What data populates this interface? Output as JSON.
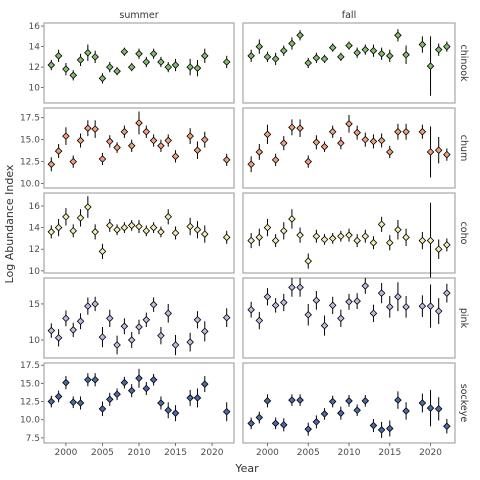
{
  "chart_data": {
    "type": "scatter",
    "xlabel": "Year",
    "ylabel": "Log Abundance Index",
    "x_ticks": [
      2000,
      2005,
      2010,
      2015,
      2020
    ],
    "x_range": [
      1997,
      2023
    ],
    "columns": [
      "summer",
      "fall"
    ],
    "rows": [
      {
        "name": "chinook",
        "color": "#7fbf6a",
        "ylim": [
          8.5,
          16.3
        ],
        "y_ticks": [
          10,
          12,
          14,
          16
        ],
        "tick_labels": [
          "10",
          "12",
          "14",
          "16"
        ],
        "summer": [
          [
            1998,
            12.2,
            0.5
          ],
          [
            1999,
            13.1,
            0.6
          ],
          [
            2000,
            11.8,
            0.6
          ],
          [
            2001,
            11.2,
            0.5
          ],
          [
            2002,
            12.7,
            0.6
          ],
          [
            2003,
            13.4,
            0.8
          ],
          [
            2004,
            13.0,
            0.6
          ],
          [
            2005,
            10.9,
            0.5
          ],
          [
            2006,
            12.0,
            0.5
          ],
          [
            2007,
            11.6,
            0.4
          ],
          [
            2008,
            13.5,
            0.4
          ],
          [
            2009,
            12.0,
            0.4
          ],
          [
            2010,
            13.3,
            0.5
          ],
          [
            2011,
            12.5,
            0.5
          ],
          [
            2012,
            13.3,
            0.5
          ],
          [
            2013,
            12.5,
            0.5
          ],
          [
            2014,
            12.0,
            0.5
          ],
          [
            2015,
            12.2,
            0.6
          ],
          [
            2017,
            12.0,
            0.8
          ],
          [
            2018,
            11.9,
            0.8
          ],
          [
            2019,
            13.1,
            0.7
          ],
          [
            2022,
            12.5,
            0.6
          ]
        ],
        "fall": [
          [
            1998,
            13.1,
            0.6
          ],
          [
            1999,
            14.0,
            0.7
          ],
          [
            2000,
            13.0,
            0.5
          ],
          [
            2001,
            12.8,
            0.6
          ],
          [
            2002,
            13.6,
            0.5
          ],
          [
            2003,
            14.3,
            0.6
          ],
          [
            2004,
            15.1,
            0.5
          ],
          [
            2005,
            12.4,
            0.5
          ],
          [
            2006,
            12.9,
            0.5
          ],
          [
            2007,
            12.8,
            0.4
          ],
          [
            2008,
            13.9,
            0.4
          ],
          [
            2009,
            13.0,
            0.4
          ],
          [
            2010,
            14.1,
            0.4
          ],
          [
            2011,
            13.4,
            0.5
          ],
          [
            2012,
            13.7,
            0.5
          ],
          [
            2013,
            13.6,
            0.6
          ],
          [
            2014,
            13.3,
            0.6
          ],
          [
            2015,
            13.1,
            0.6
          ],
          [
            2016,
            15.1,
            0.6
          ],
          [
            2017,
            13.2,
            0.9
          ],
          [
            2019,
            14.2,
            0.8
          ],
          [
            2020,
            12.1,
            2.9
          ],
          [
            2021,
            13.7,
            0.6
          ],
          [
            2022,
            14.0,
            0.5
          ]
        ]
      },
      {
        "name": "chum",
        "color": "#f4a07a",
        "ylim": [
          9.5,
          18.6
        ],
        "y_ticks": [
          10.0,
          12.5,
          15.0,
          17.5
        ],
        "tick_labels": [
          "10.0",
          "12.5",
          "15.0",
          "17.5"
        ],
        "summer": [
          [
            1998,
            12.2,
            0.8
          ],
          [
            1999,
            13.7,
            0.8
          ],
          [
            2000,
            15.4,
            1.0
          ],
          [
            2001,
            12.5,
            0.7
          ],
          [
            2002,
            14.9,
            0.8
          ],
          [
            2003,
            16.3,
            0.9
          ],
          [
            2004,
            16.2,
            1.0
          ],
          [
            2005,
            12.8,
            0.7
          ],
          [
            2006,
            14.8,
            0.7
          ],
          [
            2007,
            14.1,
            0.6
          ],
          [
            2008,
            15.9,
            0.7
          ],
          [
            2009,
            14.3,
            0.7
          ],
          [
            2010,
            16.9,
            1.3
          ],
          [
            2011,
            15.9,
            0.7
          ],
          [
            2012,
            14.9,
            0.7
          ],
          [
            2013,
            14.3,
            0.7
          ],
          [
            2014,
            14.9,
            0.7
          ],
          [
            2015,
            13.1,
            0.7
          ],
          [
            2017,
            15.4,
            0.9
          ],
          [
            2018,
            13.8,
            1.0
          ],
          [
            2019,
            15.0,
            0.9
          ],
          [
            2022,
            12.7,
            0.7
          ]
        ],
        "fall": [
          [
            1998,
            12.2,
            0.9
          ],
          [
            1999,
            13.6,
            0.9
          ],
          [
            2000,
            15.6,
            1.1
          ],
          [
            2001,
            12.7,
            0.7
          ],
          [
            2002,
            14.6,
            0.8
          ],
          [
            2003,
            16.4,
            0.9
          ],
          [
            2004,
            16.3,
            1.0
          ],
          [
            2005,
            12.5,
            0.7
          ],
          [
            2006,
            14.7,
            0.8
          ],
          [
            2007,
            14.2,
            0.6
          ],
          [
            2008,
            15.9,
            0.7
          ],
          [
            2009,
            14.6,
            0.7
          ],
          [
            2010,
            16.8,
            1.0
          ],
          [
            2011,
            15.8,
            0.8
          ],
          [
            2012,
            15.0,
            0.8
          ],
          [
            2013,
            14.8,
            0.8
          ],
          [
            2014,
            14.9,
            0.8
          ],
          [
            2015,
            13.6,
            0.7
          ],
          [
            2016,
            15.9,
            0.9
          ],
          [
            2017,
            15.9,
            0.9
          ],
          [
            2019,
            15.9,
            0.8
          ],
          [
            2020,
            13.6,
            2.9
          ],
          [
            2021,
            13.8,
            1.5
          ],
          [
            2022,
            13.3,
            0.7
          ]
        ]
      },
      {
        "name": "coho",
        "color": "#f4ecb0",
        "ylim": [
          9.8,
          17.2
        ],
        "y_ticks": [
          10,
          12,
          14,
          16
        ],
        "tick_labels": [
          "10",
          "12",
          "14",
          "16"
        ],
        "summer": [
          [
            1998,
            13.6,
            0.6
          ],
          [
            1999,
            14.0,
            0.8
          ],
          [
            2000,
            15.0,
            0.8
          ],
          [
            2001,
            13.7,
            0.6
          ],
          [
            2002,
            14.9,
            0.8
          ],
          [
            2003,
            15.9,
            1.0
          ],
          [
            2004,
            13.6,
            0.7
          ],
          [
            2005,
            11.8,
            0.7
          ],
          [
            2006,
            14.2,
            0.6
          ],
          [
            2007,
            13.8,
            0.5
          ],
          [
            2008,
            14.0,
            0.5
          ],
          [
            2009,
            14.2,
            0.5
          ],
          [
            2010,
            14.1,
            0.6
          ],
          [
            2011,
            13.7,
            0.5
          ],
          [
            2012,
            14.0,
            0.5
          ],
          [
            2013,
            13.6,
            0.5
          ],
          [
            2014,
            15.0,
            0.7
          ],
          [
            2015,
            13.5,
            0.6
          ],
          [
            2017,
            14.1,
            0.8
          ],
          [
            2018,
            13.8,
            0.8
          ],
          [
            2019,
            13.4,
            0.8
          ],
          [
            2022,
            13.1,
            0.6
          ]
        ],
        "fall": [
          [
            1998,
            12.8,
            0.7
          ],
          [
            1999,
            13.1,
            0.8
          ],
          [
            2000,
            14.0,
            0.8
          ],
          [
            2001,
            12.8,
            0.6
          ],
          [
            2002,
            13.7,
            0.8
          ],
          [
            2003,
            14.8,
            0.9
          ],
          [
            2004,
            13.3,
            0.7
          ],
          [
            2005,
            10.9,
            0.7
          ],
          [
            2006,
            13.2,
            0.6
          ],
          [
            2007,
            12.9,
            0.5
          ],
          [
            2008,
            13.0,
            0.5
          ],
          [
            2009,
            13.2,
            0.5
          ],
          [
            2010,
            13.3,
            0.6
          ],
          [
            2011,
            12.8,
            0.6
          ],
          [
            2012,
            13.2,
            0.6
          ],
          [
            2013,
            12.6,
            0.6
          ],
          [
            2014,
            14.3,
            0.7
          ],
          [
            2015,
            12.6,
            0.7
          ],
          [
            2016,
            13.8,
            0.9
          ],
          [
            2017,
            13.1,
            0.8
          ],
          [
            2019,
            12.8,
            0.8
          ],
          [
            2020,
            12.8,
            3.5
          ],
          [
            2021,
            12.0,
            0.9
          ],
          [
            2022,
            12.4,
            0.6
          ]
        ]
      },
      {
        "name": "pink",
        "color": "#c3b9e6",
        "ylim": [
          7.5,
          18.6
        ],
        "y_ticks": [
          10,
          15
        ],
        "tick_labels": [
          "10",
          "15"
        ],
        "summer": [
          [
            1998,
            11.3,
            1.0
          ],
          [
            1999,
            10.3,
            1.2
          ],
          [
            2000,
            13.0,
            1.1
          ],
          [
            2001,
            11.4,
            1.0
          ],
          [
            2002,
            12.6,
            1.1
          ],
          [
            2003,
            14.7,
            1.2
          ],
          [
            2004,
            15.0,
            1.0
          ],
          [
            2005,
            10.4,
            1.4
          ],
          [
            2006,
            13.0,
            1.2
          ],
          [
            2007,
            9.3,
            1.3
          ],
          [
            2008,
            11.9,
            1.1
          ],
          [
            2009,
            10.0,
            1.1
          ],
          [
            2010,
            11.8,
            1.0
          ],
          [
            2011,
            12.8,
            1.0
          ],
          [
            2012,
            14.9,
            1.0
          ],
          [
            2013,
            10.6,
            1.2
          ],
          [
            2014,
            13.7,
            1.3
          ],
          [
            2015,
            9.3,
            1.4
          ],
          [
            2017,
            9.7,
            1.3
          ],
          [
            2018,
            12.8,
            1.2
          ],
          [
            2019,
            11.2,
            1.4
          ],
          [
            2022,
            13.1,
            1.3
          ]
        ],
        "fall": [
          [
            1998,
            14.2,
            1.1
          ],
          [
            1999,
            12.7,
            1.2
          ],
          [
            2000,
            16.0,
            1.2
          ],
          [
            2001,
            14.8,
            1.0
          ],
          [
            2002,
            15.2,
            1.2
          ],
          [
            2003,
            17.3,
            1.3
          ],
          [
            2004,
            17.3,
            1.3
          ],
          [
            2005,
            13.5,
            1.5
          ],
          [
            2006,
            15.5,
            1.3
          ],
          [
            2007,
            12.0,
            1.4
          ],
          [
            2008,
            14.8,
            1.2
          ],
          [
            2009,
            13.0,
            1.2
          ],
          [
            2010,
            15.3,
            1.1
          ],
          [
            2011,
            15.4,
            1.1
          ],
          [
            2012,
            17.5,
            1.1
          ],
          [
            2013,
            13.7,
            1.2
          ],
          [
            2014,
            16.5,
            1.4
          ],
          [
            2015,
            14.6,
            1.5
          ],
          [
            2016,
            16.0,
            2.0
          ],
          [
            2017,
            14.6,
            1.5
          ],
          [
            2019,
            14.7,
            1.5
          ],
          [
            2020,
            14.7,
            3.0
          ],
          [
            2021,
            14.0,
            1.8
          ],
          [
            2022,
            16.5,
            1.3
          ]
        ]
      },
      {
        "name": "sockeye",
        "color": "#4a6aa8",
        "ylim": [
          6.8,
          17.8
        ],
        "y_ticks": [
          7.5,
          10.0,
          12.5,
          15.0,
          17.5
        ],
        "tick_labels": [
          "7.5",
          "10.0",
          "12.5",
          "15.0",
          "17.5"
        ],
        "summer": [
          [
            1998,
            12.5,
            0.8
          ],
          [
            1999,
            13.2,
            0.8
          ],
          [
            2000,
            15.1,
            0.9
          ],
          [
            2001,
            12.4,
            0.8
          ],
          [
            2002,
            12.3,
            0.9
          ],
          [
            2003,
            15.5,
            0.9
          ],
          [
            2004,
            15.5,
            0.9
          ],
          [
            2005,
            11.5,
            1.0
          ],
          [
            2006,
            12.8,
            0.9
          ],
          [
            2007,
            13.5,
            0.8
          ],
          [
            2008,
            15.1,
            0.8
          ],
          [
            2009,
            14.0,
            0.9
          ],
          [
            2010,
            15.7,
            1.3
          ],
          [
            2011,
            14.3,
            0.9
          ],
          [
            2012,
            15.5,
            0.8
          ],
          [
            2013,
            12.3,
            0.9
          ],
          [
            2014,
            11.3,
            1.1
          ],
          [
            2015,
            10.9,
            1.1
          ],
          [
            2017,
            13.0,
            1.1
          ],
          [
            2018,
            13.0,
            1.3
          ],
          [
            2019,
            14.9,
            1.1
          ],
          [
            2022,
            11.1,
            1.3
          ]
        ],
        "fall": [
          [
            1998,
            9.5,
            0.8
          ],
          [
            1999,
            10.3,
            0.8
          ],
          [
            2000,
            12.6,
            0.9
          ],
          [
            2001,
            9.5,
            0.8
          ],
          [
            2002,
            9.3,
            0.9
          ],
          [
            2003,
            12.7,
            0.8
          ],
          [
            2004,
            12.7,
            0.8
          ],
          [
            2005,
            8.7,
            0.9
          ],
          [
            2006,
            9.7,
            0.9
          ],
          [
            2007,
            10.8,
            0.8
          ],
          [
            2008,
            12.5,
            0.8
          ],
          [
            2009,
            10.9,
            0.9
          ],
          [
            2010,
            12.6,
            0.8
          ],
          [
            2011,
            11.3,
            0.8
          ],
          [
            2012,
            12.6,
            0.8
          ],
          [
            2013,
            9.2,
            0.9
          ],
          [
            2014,
            8.6,
            1.1
          ],
          [
            2015,
            8.8,
            1.1
          ],
          [
            2016,
            12.7,
            1.2
          ],
          [
            2017,
            11.2,
            1.2
          ],
          [
            2019,
            12.3,
            1.3
          ],
          [
            2020,
            11.6,
            2.5
          ],
          [
            2021,
            11.5,
            1.6
          ],
          [
            2022,
            9.1,
            1.0
          ]
        ]
      }
    ]
  }
}
